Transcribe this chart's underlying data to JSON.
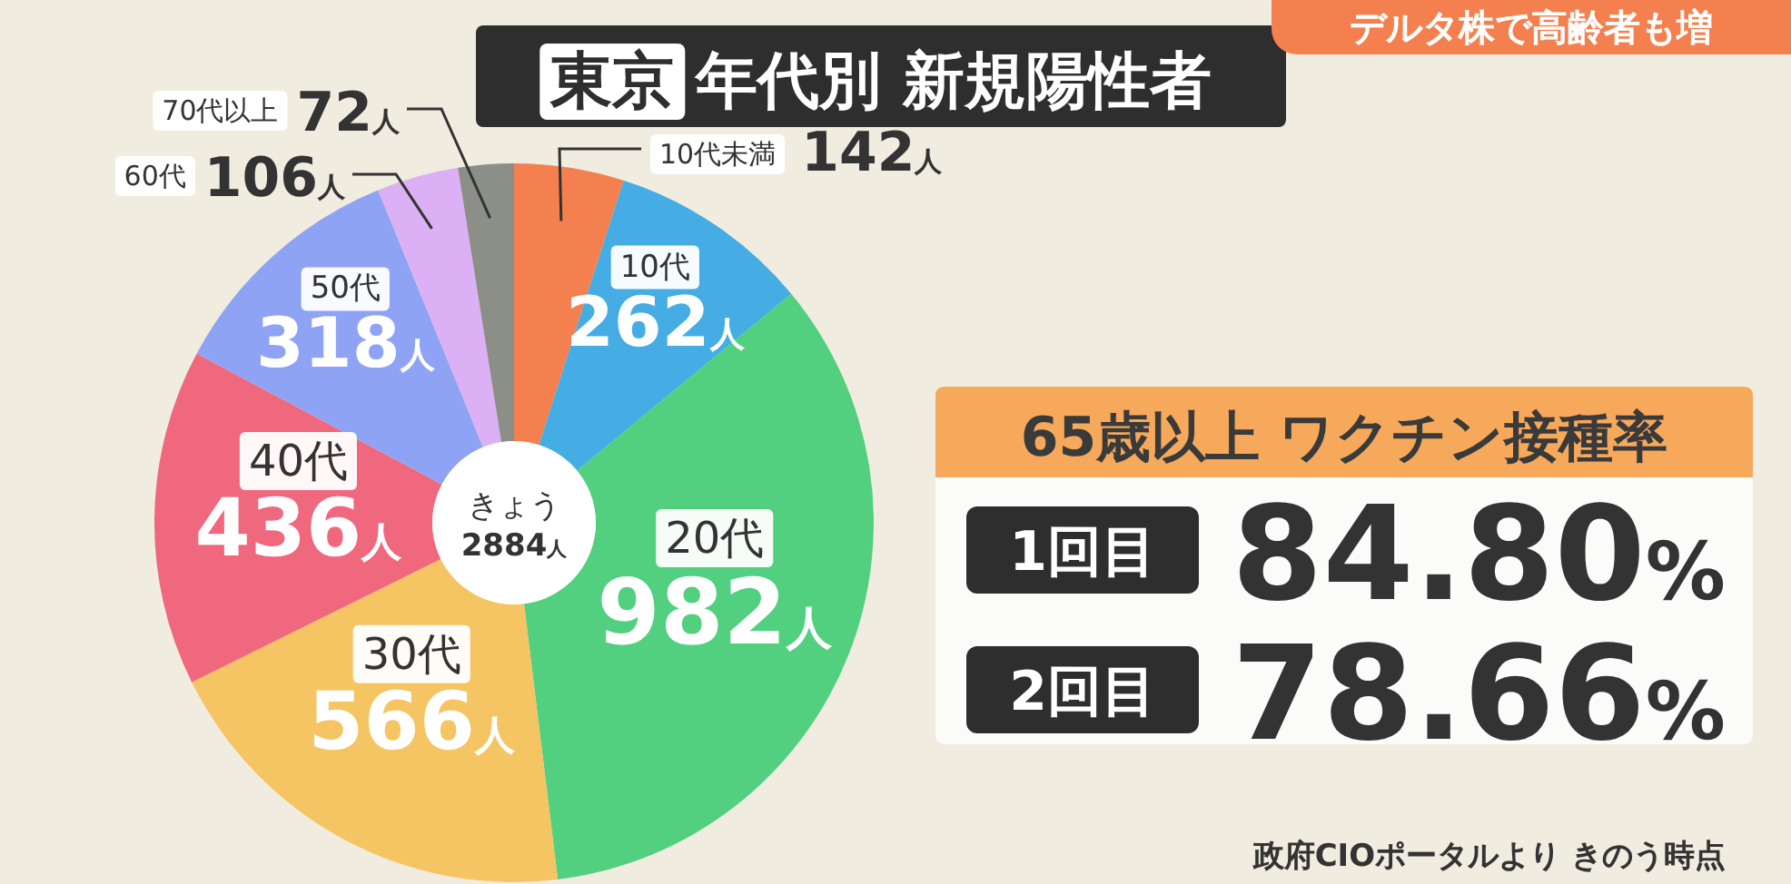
{
  "chart_data": [
    {
      "type": "donut",
      "title": "東京 年代別 新規陽性者",
      "categories": [
        "10代未満",
        "10代",
        "20代",
        "30代",
        "40代",
        "50代",
        "60代",
        "70代以上"
      ],
      "values": [
        142,
        262,
        982,
        566,
        436,
        318,
        106,
        72
      ],
      "value_labels": [
        "142人",
        "262人",
        "982人",
        "566人",
        "436人",
        "318人",
        "106人",
        "72人"
      ],
      "colors": [
        "#f5804f",
        "#45ade3",
        "#52d07f",
        "#f5c463",
        "#f0687e",
        "#8fa3f5",
        "#dcb0f5",
        "#8b8f88"
      ],
      "annotations": [
        "きょう",
        "2884人",
        "デルタ株で高齢者も増"
      ]
    },
    {
      "type": "other",
      "title": "65歳以上 ワクチン接種率",
      "categories": [
        "1回目",
        "2回目"
      ],
      "value_labels": [
        "84.80%",
        "78.66%"
      ],
      "annotations": [
        "政府CIOポータルより きのう時点"
      ]
    }
  ]
}
